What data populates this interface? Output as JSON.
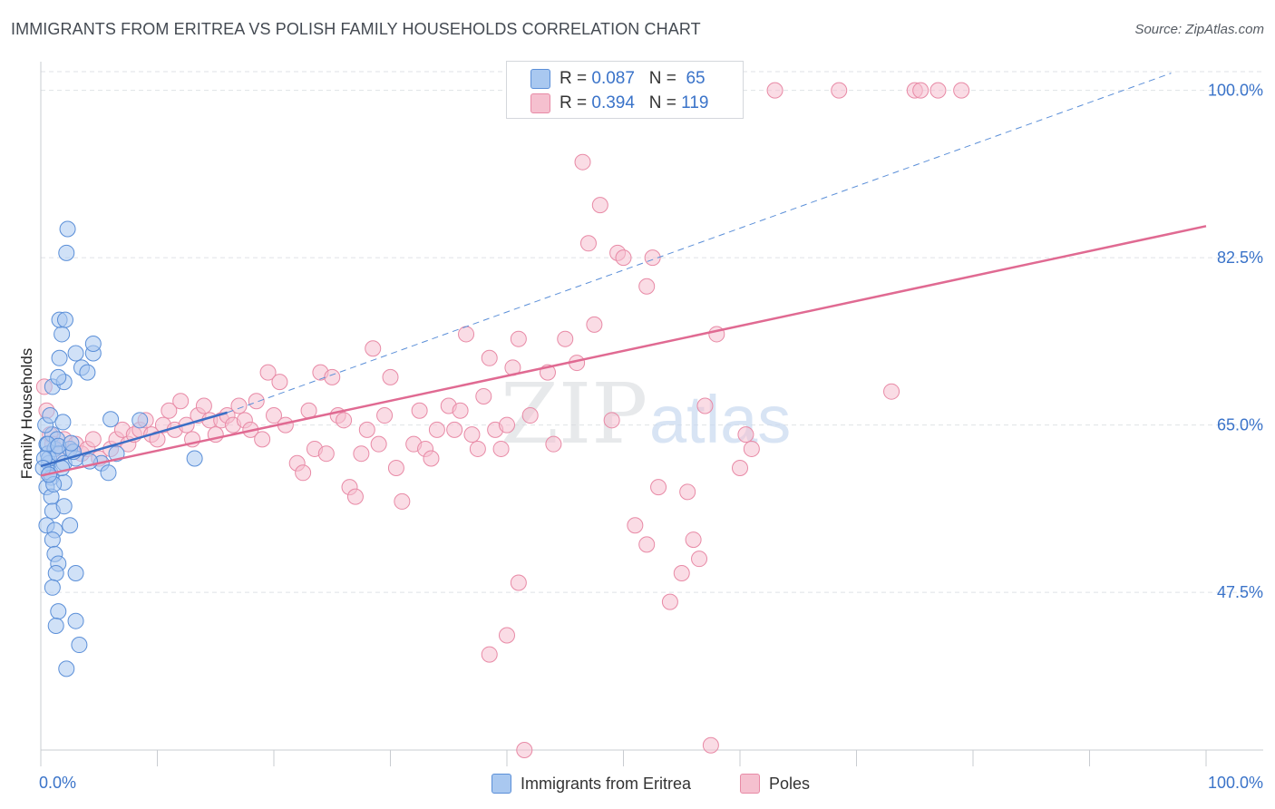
{
  "title": "IMMIGRANTS FROM ERITREA VS POLISH FAMILY HOUSEHOLDS CORRELATION CHART",
  "source": "Source: ZipAtlas.com",
  "watermark": {
    "zip": "ZIP",
    "atlas": "atlas"
  },
  "legend": {
    "series": [
      {
        "r_label": "R =",
        "r_value": "0.087",
        "n_label": "N =",
        "n_value": "65"
      },
      {
        "r_label": "R =",
        "r_value": "0.394",
        "n_label": "N =",
        "n_value": "119"
      }
    ]
  },
  "bottom_legend": [
    "Immigrants from Eritrea",
    "Poles"
  ],
  "colors": {
    "blue_fill": "#a9c8f0",
    "blue_stroke": "#5b8fd8",
    "blue_line": "#3b6fc6",
    "pink_fill": "#f5c0cf",
    "pink_stroke": "#e88aa6",
    "pink_line": "#e06a92",
    "axis_text": "#3a73c9",
    "grid": "#dfe2e6"
  },
  "chart_data": {
    "type": "scatter",
    "title": "IMMIGRANTS FROM ERITREA VS POLISH FAMILY HOUSEHOLDS CORRELATION CHART",
    "xlabel": "",
    "ylabel": "Family Households",
    "xlim": [
      0,
      100
    ],
    "ylim": [
      31,
      103
    ],
    "x_tick_labels": [
      "0.0%",
      "100.0%"
    ],
    "y_ticks": [
      47.5,
      65.0,
      82.5,
      100.0
    ],
    "y_tick_labels": [
      "47.5%",
      "65.0%",
      "82.5%",
      "100.0%"
    ],
    "series": [
      {
        "name": "Immigrants from Eritrea",
        "R": 0.087,
        "N": 65,
        "trend_solid": [
          [
            0,
            60.7
          ],
          [
            16,
            66.3
          ]
        ],
        "trend_dashed": [
          [
            16,
            66.3
          ],
          [
            97,
            101.8
          ]
        ],
        "points": [
          [
            0.5,
            63.0
          ],
          [
            0.6,
            62.0
          ],
          [
            0.7,
            61.0
          ],
          [
            0.8,
            60.0
          ],
          [
            0.9,
            59.5
          ],
          [
            0.5,
            58.5
          ],
          [
            1.0,
            64.0
          ],
          [
            1.2,
            62.5
          ],
          [
            0.7,
            61.5
          ],
          [
            1.4,
            63.5
          ],
          [
            1.5,
            62.0
          ],
          [
            2.0,
            61.0
          ],
          [
            2.5,
            62.5
          ],
          [
            0.4,
            65.0
          ],
          [
            0.8,
            66.0
          ],
          [
            1.0,
            69.0
          ],
          [
            2.0,
            69.5
          ],
          [
            1.5,
            70.0
          ],
          [
            3.0,
            72.5
          ],
          [
            4.5,
            72.5
          ],
          [
            1.6,
            72.0
          ],
          [
            3.5,
            71.0
          ],
          [
            4.0,
            70.5
          ],
          [
            1.8,
            74.5
          ],
          [
            1.6,
            76.0
          ],
          [
            2.1,
            76.0
          ],
          [
            4.5,
            73.5
          ],
          [
            2.3,
            85.5
          ],
          [
            2.2,
            83.0
          ],
          [
            0.9,
            57.5
          ],
          [
            1.0,
            56.0
          ],
          [
            2.0,
            56.5
          ],
          [
            0.5,
            54.5
          ],
          [
            1.2,
            54.0
          ],
          [
            2.5,
            54.5
          ],
          [
            1.0,
            53.0
          ],
          [
            1.2,
            51.5
          ],
          [
            1.5,
            50.5
          ],
          [
            1.3,
            49.5
          ],
          [
            3.0,
            49.5
          ],
          [
            1.0,
            48.0
          ],
          [
            1.5,
            45.5
          ],
          [
            1.3,
            44.0
          ],
          [
            3.0,
            44.5
          ],
          [
            3.3,
            42.0
          ],
          [
            2.2,
            39.5
          ],
          [
            8.5,
            65.5
          ],
          [
            6.5,
            62.0
          ],
          [
            5.2,
            61.0
          ],
          [
            13.2,
            61.5
          ],
          [
            2.0,
            59.0
          ],
          [
            1.8,
            60.5
          ],
          [
            3.0,
            61.5
          ],
          [
            5.8,
            60.0
          ],
          [
            0.6,
            63.0
          ],
          [
            0.3,
            61.5
          ],
          [
            1.5,
            62.8
          ],
          [
            2.8,
            62.2
          ],
          [
            0.2,
            60.5
          ],
          [
            1.1,
            58.8
          ],
          [
            0.7,
            59.8
          ],
          [
            4.2,
            61.2
          ],
          [
            2.6,
            63.1
          ],
          [
            1.9,
            65.3
          ],
          [
            6.0,
            65.6
          ]
        ]
      },
      {
        "name": "Poles",
        "R": 0.394,
        "N": 119,
        "trend_solid": [
          [
            0,
            59.7
          ],
          [
            100,
            85.8
          ]
        ],
        "points": [
          [
            0.3,
            69.0
          ],
          [
            0.5,
            66.5
          ],
          [
            0.8,
            64.0
          ],
          [
            1.0,
            63.0
          ],
          [
            1.5,
            62.0
          ],
          [
            2.0,
            63.5
          ],
          [
            2.5,
            62.5
          ],
          [
            3.0,
            63.0
          ],
          [
            3.5,
            62.0
          ],
          [
            4.0,
            62.5
          ],
          [
            4.5,
            63.5
          ],
          [
            5.0,
            61.5
          ],
          [
            6.0,
            62.5
          ],
          [
            6.5,
            63.5
          ],
          [
            7.0,
            64.5
          ],
          [
            7.5,
            63.0
          ],
          [
            8.0,
            64.0
          ],
          [
            8.5,
            64.5
          ],
          [
            9.0,
            65.5
          ],
          [
            9.5,
            64.0
          ],
          [
            10.0,
            63.5
          ],
          [
            10.5,
            65.0
          ],
          [
            11.0,
            66.5
          ],
          [
            11.5,
            64.5
          ],
          [
            12.0,
            67.5
          ],
          [
            12.5,
            65.0
          ],
          [
            13.0,
            63.5
          ],
          [
            13.5,
            66.0
          ],
          [
            14.0,
            67.0
          ],
          [
            14.5,
            65.5
          ],
          [
            15.0,
            64.0
          ],
          [
            15.5,
            65.5
          ],
          [
            16.0,
            66.0
          ],
          [
            16.5,
            65.0
          ],
          [
            17.0,
            67.0
          ],
          [
            17.5,
            65.5
          ],
          [
            18.0,
            64.5
          ],
          [
            18.5,
            67.5
          ],
          [
            19.0,
            63.5
          ],
          [
            19.5,
            70.5
          ],
          [
            20.0,
            66.0
          ],
          [
            20.5,
            69.5
          ],
          [
            21.0,
            65.0
          ],
          [
            22.0,
            61.0
          ],
          [
            22.5,
            60.0
          ],
          [
            23.0,
            66.5
          ],
          [
            23.5,
            62.5
          ],
          [
            24.0,
            70.5
          ],
          [
            24.5,
            62.0
          ],
          [
            25.0,
            70.0
          ],
          [
            25.5,
            66.0
          ],
          [
            26.0,
            65.5
          ],
          [
            26.5,
            58.5
          ],
          [
            27.0,
            57.5
          ],
          [
            27.5,
            62.0
          ],
          [
            28.0,
            64.5
          ],
          [
            28.5,
            73.0
          ],
          [
            29.0,
            63.0
          ],
          [
            29.5,
            66.0
          ],
          [
            30.0,
            70.0
          ],
          [
            30.5,
            60.5
          ],
          [
            31.0,
            57.0
          ],
          [
            32.0,
            63.0
          ],
          [
            32.5,
            66.5
          ],
          [
            33.0,
            62.5
          ],
          [
            33.5,
            61.5
          ],
          [
            34.0,
            64.5
          ],
          [
            35.0,
            67.0
          ],
          [
            35.5,
            64.5
          ],
          [
            36.0,
            66.5
          ],
          [
            36.5,
            74.5
          ],
          [
            37.0,
            64.0
          ],
          [
            37.5,
            62.5
          ],
          [
            38.0,
            68.0
          ],
          [
            38.5,
            72.0
          ],
          [
            39.0,
            64.5
          ],
          [
            39.5,
            62.5
          ],
          [
            40.0,
            65.0
          ],
          [
            40.5,
            71.0
          ],
          [
            41.0,
            74.0
          ],
          [
            42.0,
            66.0
          ],
          [
            43.5,
            70.5
          ],
          [
            44.0,
            63.0
          ],
          [
            45.0,
            74.0
          ],
          [
            46.0,
            71.5
          ],
          [
            46.5,
            92.5
          ],
          [
            47.0,
            84.0
          ],
          [
            47.5,
            75.5
          ],
          [
            48.0,
            88.0
          ],
          [
            49.0,
            65.5
          ],
          [
            49.5,
            83.0
          ],
          [
            50.0,
            82.5
          ],
          [
            51.0,
            54.5
          ],
          [
            52.0,
            79.5
          ],
          [
            52.5,
            82.5
          ],
          [
            53.0,
            58.5
          ],
          [
            55.0,
            49.5
          ],
          [
            55.5,
            58.0
          ],
          [
            56.0,
            53.0
          ],
          [
            56.5,
            51.0
          ],
          [
            57.0,
            67.0
          ],
          [
            58.0,
            74.5
          ],
          [
            60.0,
            60.5
          ],
          [
            60.5,
            64.0
          ],
          [
            61.0,
            62.5
          ],
          [
            63.0,
            100.0
          ],
          [
            68.5,
            100.0
          ],
          [
            75.0,
            100.0
          ],
          [
            75.5,
            100.0
          ],
          [
            77.0,
            100.0
          ],
          [
            79.0,
            100.0
          ],
          [
            73.0,
            68.5
          ],
          [
            52.0,
            52.5
          ],
          [
            54.0,
            46.5
          ],
          [
            57.5,
            31.5
          ],
          [
            41.0,
            48.5
          ],
          [
            40.0,
            43.0
          ],
          [
            38.5,
            41.0
          ],
          [
            41.5,
            31.0
          ]
        ]
      }
    ]
  }
}
